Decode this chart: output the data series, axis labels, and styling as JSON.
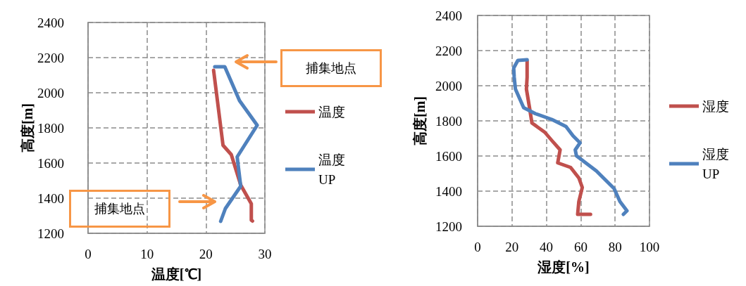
{
  "chart_data": [
    {
      "type": "line",
      "xlabel": "温度[℃]",
      "ylabel": "高度[m]",
      "xlim": [
        0,
        30
      ],
      "xticks": [
        0,
        10,
        20,
        30
      ],
      "ylim": [
        1200,
        2400
      ],
      "yticks": [
        1200,
        1400,
        1600,
        1800,
        2000,
        2200,
        2400
      ],
      "grid": true,
      "legend": "right",
      "marker": "none",
      "line_style": "solid",
      "annotations": [
        "捕集地点",
        "捕集地点"
      ],
      "series": [
        {
          "name": "温度",
          "color": "#c0504d",
          "x": [
            21.3,
            22.9,
            24.3,
            25.9,
            27.7,
            27.7,
            27.9
          ],
          "values": [
            2128,
            1701,
            1648,
            1475,
            1368,
            1275,
            1270
          ]
        },
        {
          "name": "温度 UP",
          "color": "#4f81bd",
          "x": [
            21.5,
            23.2,
            25.7,
            28.7,
            25.3,
            25.9,
            23.3,
            22.5
          ],
          "values": [
            2148,
            2148,
            1955,
            1815,
            1635,
            1468,
            1341,
            1268
          ]
        }
      ]
    },
    {
      "type": "line",
      "xlabel": "湿度[%]",
      "ylabel": "高度[m]",
      "xlim": [
        0,
        100
      ],
      "xticks": [
        0,
        20,
        40,
        60,
        80,
        100
      ],
      "ylim": [
        1200,
        2400
      ],
      "yticks": [
        1200,
        1400,
        1600,
        1800,
        2000,
        2200,
        2400
      ],
      "grid": true,
      "legend": "right",
      "marker": "none",
      "line_style": "solid",
      "series": [
        {
          "name": "湿度",
          "color": "#c0504d",
          "x": [
            28.8,
            28.8,
            28.4,
            30.2,
            31.6,
            39.1,
            43.2,
            48.0,
            46.6,
            54.1,
            58.9,
            60.9,
            58.9,
            58.2,
            65.7
          ],
          "values": [
            2141,
            2048,
            1981,
            1875,
            1788,
            1735,
            1688,
            1635,
            1561,
            1535,
            1475,
            1421,
            1341,
            1268,
            1268
          ]
        },
        {
          "name": "湿度 UP",
          "color": "#4f81bd",
          "x": [
            28.8,
            23.4,
            21.0,
            21.3,
            22.0,
            26.8,
            33.6,
            43.2,
            51.4,
            55.5,
            59.6,
            56.8,
            57.5,
            69.1,
            79.4,
            82.8,
            86.9,
            84.8
          ],
          "values": [
            2148,
            2144,
            2101,
            2048,
            1981,
            1875,
            1841,
            1808,
            1768,
            1715,
            1675,
            1635,
            1601,
            1515,
            1415,
            1341,
            1288,
            1268
          ]
        }
      ]
    }
  ]
}
